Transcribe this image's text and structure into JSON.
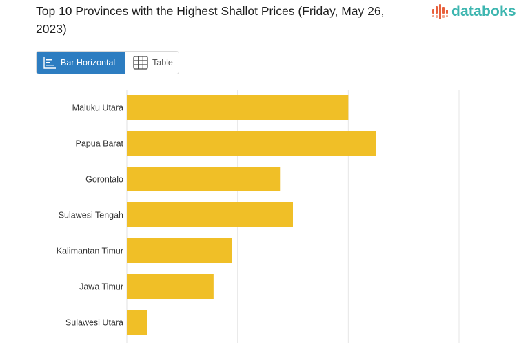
{
  "title": "Top 10 Provinces with the Highest Shallot Prices (Friday, May 26, 2023)",
  "logo": {
    "text": "databoks"
  },
  "view_toggle": {
    "options": [
      {
        "label": "Bar Horizontal",
        "icon": "bar-horizontal-icon",
        "active": true
      },
      {
        "label": "Table",
        "icon": "table-grid-icon",
        "active": false
      }
    ],
    "active_color": "#2d7dc1"
  },
  "chart_data": {
    "type": "bar",
    "orientation": "horizontal",
    "categories": [
      "Maluku Utara",
      "Papua Barat",
      "Gorontalo",
      "Sulawesi Tengah",
      "Kalimantan Timur",
      "Jawa Timur",
      "Sulawesi Utara"
    ],
    "values": [
      60000,
      67500,
      41500,
      45000,
      28500,
      23500,
      5500
    ],
    "xlim": [
      0,
      90000
    ],
    "grid": true,
    "bar_color": "#f0bf27"
  }
}
